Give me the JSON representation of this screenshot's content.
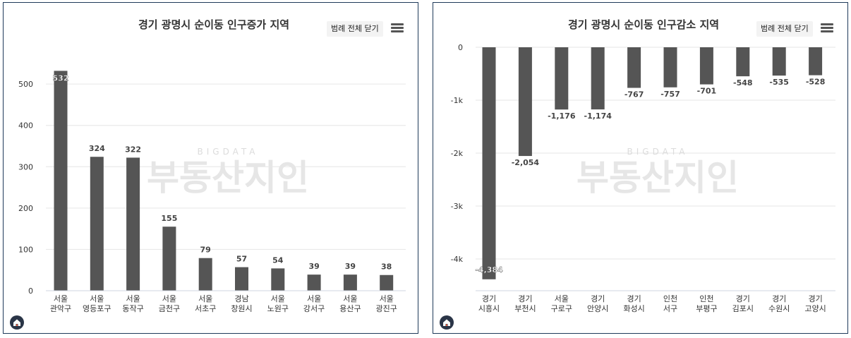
{
  "watermark": {
    "top": "BIGDATA",
    "main": "부동산지인"
  },
  "controls": {
    "legend_label": "범례 전체 닫기"
  },
  "colors": {
    "bar": "#555555",
    "grid": "#e6e6e6",
    "text": "#333333",
    "title": "#333333",
    "border": "#1f3a5a"
  },
  "icons": {
    "menu": "hamburger-menu-icon",
    "logo": "home-logo-icon"
  },
  "chart_data": [
    {
      "type": "bar",
      "title": "경기 광명시 순이동 인구증가 지역",
      "categories": [
        [
          "서울",
          "관악구"
        ],
        [
          "서울",
          "영등포구"
        ],
        [
          "서울",
          "동작구"
        ],
        [
          "서울",
          "금천구"
        ],
        [
          "서울",
          "서초구"
        ],
        [
          "경남",
          "창원시"
        ],
        [
          "서울",
          "노원구"
        ],
        [
          "서울",
          "강서구"
        ],
        [
          "서울",
          "용산구"
        ],
        [
          "서울",
          "광진구"
        ]
      ],
      "values": [
        532,
        324,
        322,
        155,
        79,
        57,
        54,
        39,
        39,
        38
      ],
      "value_labels": [
        "532",
        "324",
        "322",
        "155",
        "79",
        "57",
        "54",
        "39",
        "39",
        "38"
      ],
      "ylim": [
        0,
        560
      ],
      "yticks": [
        0,
        100,
        200,
        300,
        400,
        500
      ],
      "ytick_labels": [
        "0",
        "100",
        "200",
        "300",
        "400",
        "500"
      ],
      "grid": true
    },
    {
      "type": "bar",
      "title": "경기 광명시 순이동 인구감소 지역",
      "categories": [
        [
          "경기",
          "시흥시"
        ],
        [
          "경기",
          "부천시"
        ],
        [
          "서울",
          "구로구"
        ],
        [
          "경기",
          "안양시"
        ],
        [
          "경기",
          "화성시"
        ],
        [
          "인천",
          "서구"
        ],
        [
          "인천",
          "부평구"
        ],
        [
          "경기",
          "김포시"
        ],
        [
          "경기",
          "수원시"
        ],
        [
          "경기",
          "고양시"
        ]
      ],
      "values": [
        -4384,
        -2054,
        -1176,
        -1174,
        -767,
        -757,
        -701,
        -548,
        -535,
        -528
      ],
      "value_labels": [
        "-4,384",
        "-2,054",
        "-1,176",
        "-1,174",
        "-767",
        "-757",
        "-701",
        "-548",
        "-535",
        "-528"
      ],
      "ylim": [
        -4600,
        0
      ],
      "yticks": [
        0,
        -1000,
        -2000,
        -3000,
        -4000
      ],
      "ytick_labels": [
        "0",
        "-1k",
        "-2k",
        "-3k",
        "-4k"
      ],
      "grid": true
    }
  ]
}
